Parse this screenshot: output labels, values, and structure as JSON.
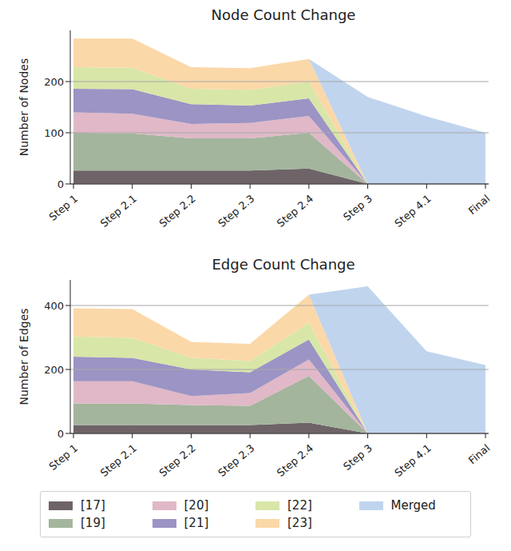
{
  "chart_data": [
    {
      "type": "area",
      "stacked": true,
      "title": "Node Count Change",
      "y_label": "Number of Nodes",
      "categories": [
        "Step 1",
        "Step 2.1",
        "Step 2.2",
        "Step 2.3",
        "Step 2.4",
        "Step 3",
        "Step 4.1",
        "Final"
      ],
      "ylim": [
        0,
        300
      ],
      "yticks": [
        0,
        100,
        200
      ],
      "grid": true,
      "series": [
        {
          "name": "[17]",
          "color": "#6e6468",
          "values": [
            26,
            26,
            26,
            26,
            30,
            0,
            0,
            0
          ]
        },
        {
          "name": "[19]",
          "color": "#a3b59c",
          "values": [
            74,
            73,
            63,
            63,
            70,
            0,
            0,
            0
          ]
        },
        {
          "name": "[20]",
          "color": "#e0b8c8",
          "values": [
            40,
            38,
            28,
            30,
            33,
            0,
            0,
            0
          ]
        },
        {
          "name": "[21]",
          "color": "#9c94c4",
          "values": [
            46,
            48,
            39,
            34,
            34,
            0,
            0,
            0
          ]
        },
        {
          "name": "[22]",
          "color": "#d8e6a8",
          "values": [
            42,
            42,
            30,
            31,
            33,
            0,
            0,
            0
          ]
        },
        {
          "name": "[23]",
          "color": "#fbd8a8",
          "values": [
            56,
            57,
            42,
            42,
            44,
            0,
            0,
            0
          ]
        },
        {
          "name": "Merged",
          "color": "#c0d4ee",
          "values": [
            0,
            0,
            0,
            0,
            0,
            170,
            132,
            100
          ]
        }
      ]
    },
    {
      "type": "area",
      "stacked": true,
      "title": "Edge Count Change",
      "y_label": "Number of Edges",
      "categories": [
        "Step 1",
        "Step 2.1",
        "Step 2.2",
        "Step 2.3",
        "Step 2.4",
        "Step 3",
        "Step 4.1",
        "Final"
      ],
      "ylim": [
        0,
        480
      ],
      "yticks": [
        0,
        200,
        400
      ],
      "grid": true,
      "legend": "bottom",
      "series": [
        {
          "name": "[17]",
          "color": "#6e6468",
          "values": [
            26,
            26,
            26,
            26,
            34,
            0,
            0,
            0
          ]
        },
        {
          "name": "[19]",
          "color": "#a3b59c",
          "values": [
            68,
            68,
            63,
            60,
            146,
            0,
            0,
            0
          ]
        },
        {
          "name": "[20]",
          "color": "#e0b8c8",
          "values": [
            69,
            69,
            28,
            40,
            51,
            0,
            0,
            0
          ]
        },
        {
          "name": "[21]",
          "color": "#9c94c4",
          "values": [
            77,
            73,
            83,
            65,
            63,
            0,
            0,
            0
          ]
        },
        {
          "name": "[22]",
          "color": "#d8e6a8",
          "values": [
            63,
            63,
            37,
            35,
            52,
            0,
            0,
            0
          ]
        },
        {
          "name": "[23]",
          "color": "#fbd8a8",
          "values": [
            88,
            90,
            49,
            54,
            88,
            0,
            0,
            0
          ]
        },
        {
          "name": "Merged",
          "color": "#c0d4ee",
          "values": [
            0,
            0,
            0,
            0,
            0,
            460,
            257,
            214
          ]
        }
      ]
    }
  ]
}
